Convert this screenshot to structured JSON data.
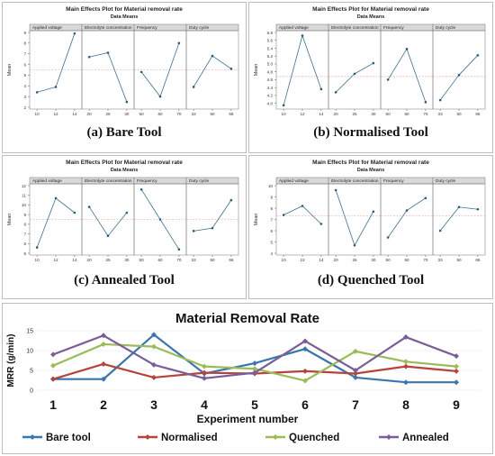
{
  "panels": [
    {
      "id": "a",
      "title": "Main Effects Plot for Material removal rate",
      "subtitle": "Data Means",
      "ylabel": "Mean",
      "caption": "(a) Bare Tool",
      "chart_data": {
        "type": "line",
        "title": "Main Effects Plot for Material removal rate",
        "ylabel": "Mean",
        "ylim": [
          2,
          9
        ],
        "yticks": [
          "2",
          "3",
          "4",
          "5",
          "6",
          "7",
          "8",
          "9"
        ],
        "ytick_values": [
          2,
          3,
          4,
          5,
          6,
          7,
          8,
          9
        ],
        "mean_line": 5.5,
        "factors": [
          {
            "name": "Applied voltage",
            "levels": [
              "10",
              "12",
              "14"
            ],
            "values": [
              3.4,
              3.9,
              8.9
            ]
          },
          {
            "name": "Electrolyte concentration",
            "levels": [
              "20",
              "25",
              "30"
            ],
            "values": [
              6.7,
              7.1,
              2.5
            ]
          },
          {
            "name": "Frequency",
            "levels": [
              "50",
              "60",
              "70"
            ],
            "values": [
              5.3,
              3.0,
              8.0
            ]
          },
          {
            "name": "Duty cycle",
            "levels": [
              "33",
              "50",
              "66"
            ],
            "values": [
              3.9,
              6.8,
              5.6
            ]
          }
        ]
      }
    },
    {
      "id": "b",
      "title": "Main Effects Plot for Material removal rate",
      "subtitle": "Data Means",
      "ylabel": "Mean",
      "caption": "(b) Normalised Tool",
      "chart_data": {
        "type": "line",
        "title": "Main Effects Plot for Material removal rate",
        "ylabel": "Mean",
        "ylim": [
          3.9,
          5.8
        ],
        "yticks": [
          "4.0",
          "4.2",
          "4.4",
          "4.6",
          "4.8",
          "5.0",
          "5.2",
          "5.4",
          "5.6",
          "5.8"
        ],
        "ytick_values": [
          4.0,
          4.2,
          4.4,
          4.6,
          4.8,
          5.0,
          5.2,
          5.4,
          5.6,
          5.8
        ],
        "mean_line": 4.68,
        "factors": [
          {
            "name": "Applied voltage",
            "levels": [
              "10",
              "12",
              "14"
            ],
            "values": [
              3.95,
              5.72,
              4.36
            ]
          },
          {
            "name": "Electrolyte concentration",
            "levels": [
              "20",
              "25",
              "30"
            ],
            "values": [
              4.28,
              4.75,
              5.02
            ]
          },
          {
            "name": "Frequency",
            "levels": [
              "50",
              "60",
              "70"
            ],
            "values": [
              4.6,
              5.38,
              4.03
            ]
          },
          {
            "name": "Duty cycle",
            "levels": [
              "33",
              "50",
              "66"
            ],
            "values": [
              4.08,
              4.72,
              5.22
            ]
          }
        ]
      }
    },
    {
      "id": "c",
      "title": "Main Effects Plot for Material removal rate",
      "subtitle": "Data Means",
      "ylabel": "Mean",
      "caption": "(c) Annealed Tool",
      "chart_data": {
        "type": "line",
        "title": "Main Effects Plot for Material removal rate",
        "ylabel": "Mean",
        "ylim": [
          5,
          12
        ],
        "yticks": [
          "5",
          "6",
          "7",
          "8",
          "9",
          "10",
          "11",
          "12"
        ],
        "ytick_values": [
          5,
          6,
          7,
          8,
          9,
          10,
          11,
          12
        ],
        "mean_line": 8.5,
        "factors": [
          {
            "name": "Applied voltage",
            "levels": [
              "10",
              "12",
              "14"
            ],
            "values": [
              5.6,
              10.7,
              9.2
            ]
          },
          {
            "name": "Electrolyte concentration",
            "levels": [
              "20",
              "25",
              "30"
            ],
            "values": [
              9.8,
              6.8,
              9.2
            ]
          },
          {
            "name": "Frequency",
            "levels": [
              "50",
              "60",
              "70"
            ],
            "values": [
              11.6,
              8.5,
              5.4
            ]
          },
          {
            "name": "Duty cycle",
            "levels": [
              "33",
              "50",
              "66"
            ],
            "values": [
              7.3,
              7.6,
              10.5
            ]
          }
        ]
      }
    },
    {
      "id": "d",
      "title": "Main Effects Plot for Material removal rate",
      "subtitle": "Data Means",
      "ylabel": "Mean",
      "caption": "(d) Quenched Tool",
      "chart_data": {
        "type": "line",
        "title": "Main Effects Plot for Material removal rate",
        "ylabel": "Mean",
        "ylim": [
          4,
          10
        ],
        "yticks": [
          "4",
          "5",
          "6",
          "7",
          "8",
          "9",
          "10"
        ],
        "ytick_values": [
          4,
          5,
          6,
          7,
          8,
          9,
          10
        ],
        "mean_line": 7.3,
        "factors": [
          {
            "name": "Applied voltage",
            "levels": [
              "10",
              "12",
              "14"
            ],
            "values": [
              7.4,
              8.2,
              6.6
            ]
          },
          {
            "name": "Electrolyte concentration",
            "levels": [
              "20",
              "25",
              "30"
            ],
            "values": [
              9.6,
              4.7,
              7.7
            ]
          },
          {
            "name": "Frequency",
            "levels": [
              "50",
              "60",
              "70"
            ],
            "values": [
              5.4,
              7.8,
              8.9
            ]
          },
          {
            "name": "Duty cycle",
            "levels": [
              "33",
              "50",
              "66"
            ],
            "values": [
              6.0,
              8.1,
              7.9
            ]
          }
        ]
      }
    }
  ],
  "mrr": {
    "title": "Material Removal Rate",
    "chart_data": {
      "type": "line",
      "title": "Material Removal Rate",
      "xlabel": "Experiment number",
      "ylabel": "MRR (g/min)",
      "ylim": [
        0,
        15
      ],
      "yticks": [
        "0",
        "5",
        "10",
        "15"
      ],
      "ytick_values": [
        0,
        5,
        10,
        15
      ],
      "categories": [
        "1",
        "2",
        "3",
        "4",
        "5",
        "6",
        "7",
        "8",
        "9"
      ],
      "legend_position": "bottom",
      "series": [
        {
          "name": "Bare tool",
          "color": "#3a76ab",
          "values": [
            2.8,
            2.8,
            14.0,
            4.2,
            6.8,
            10.4,
            3.2,
            2.0,
            2.0
          ]
        },
        {
          "name": "Normalised",
          "color": "#b5443c",
          "values": [
            2.8,
            6.6,
            3.2,
            4.4,
            4.2,
            4.8,
            4.2,
            6.0,
            4.8
          ]
        },
        {
          "name": "Quenched",
          "color": "#9bbb59",
          "values": [
            6.2,
            11.6,
            11.0,
            6.0,
            5.4,
            2.4,
            9.8,
            7.2,
            6.0
          ]
        },
        {
          "name": "Annealed",
          "color": "#7a5c99",
          "values": [
            9.0,
            13.8,
            6.4,
            3.0,
            4.4,
            12.4,
            5.0,
            13.4,
            8.6
          ]
        }
      ]
    }
  }
}
